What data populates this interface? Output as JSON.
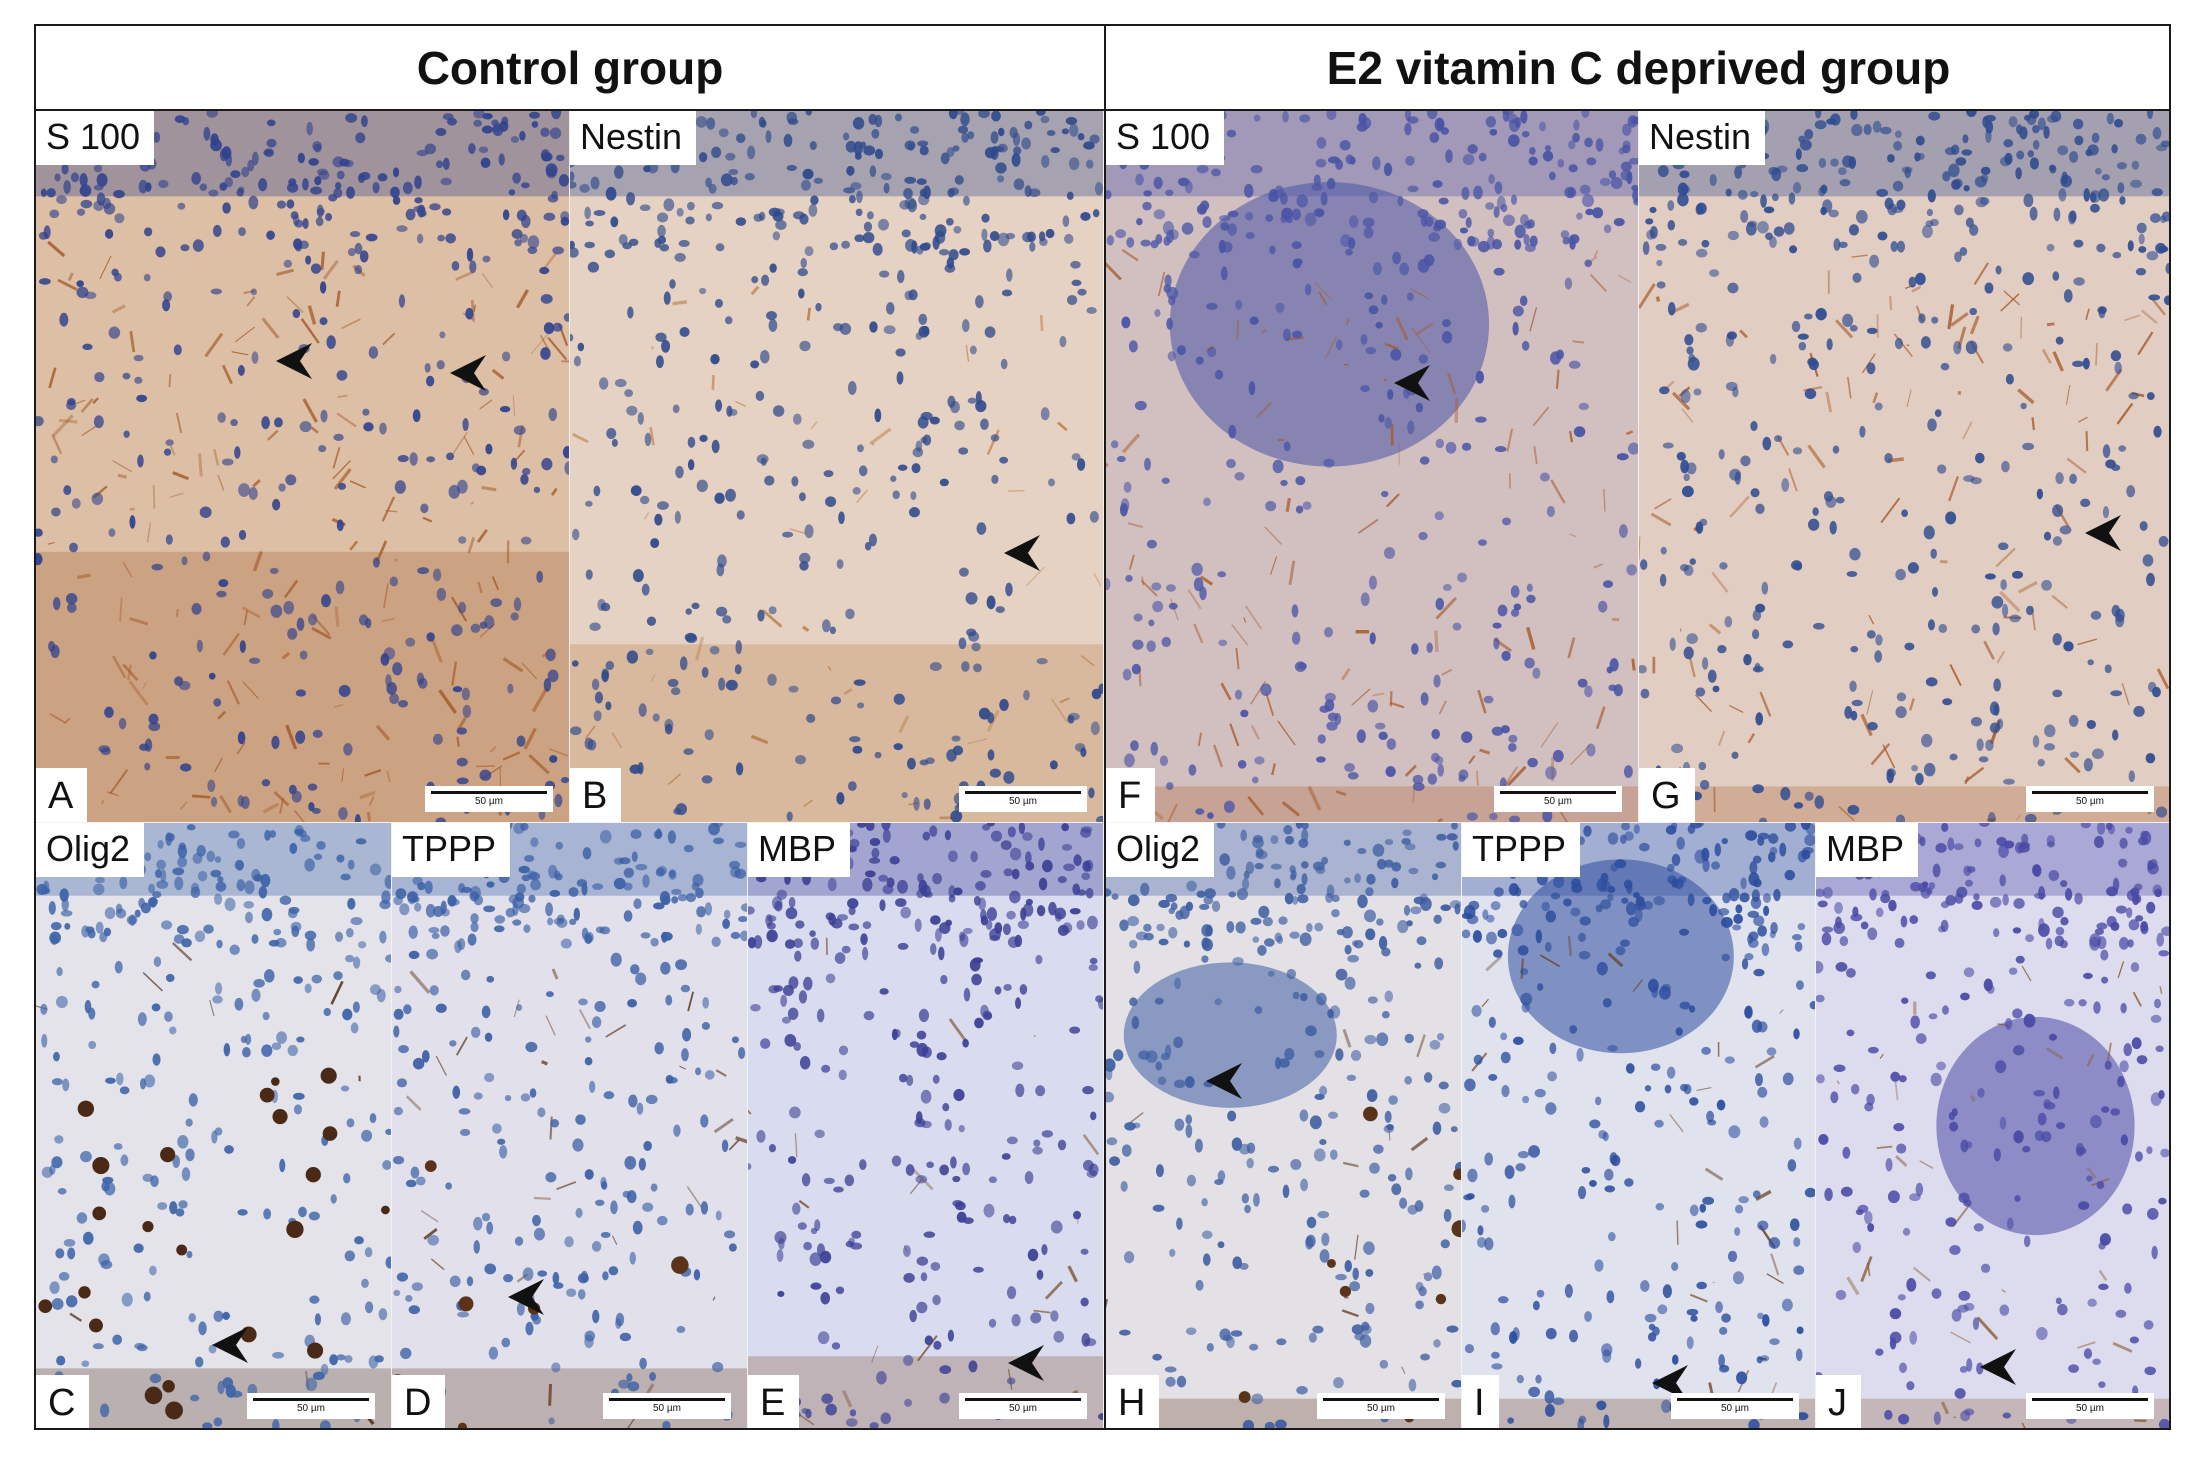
{
  "groups": {
    "control": "Control group",
    "e2": "E2 vitamin C deprived group"
  },
  "panels": [
    {
      "letter": "A",
      "stain": "S 100",
      "scale": "50 µm",
      "group": "control",
      "colors": {
        "bg": "#dcbfa4",
        "stain": "#a45a2a",
        "nuclei": "#31428e"
      }
    },
    {
      "letter": "B",
      "stain": "Nestin",
      "scale": "50 µm",
      "group": "control",
      "colors": {
        "bg": "#e6d2c3",
        "stain": "#b8793f",
        "nuclei": "#2f4a8c"
      }
    },
    {
      "letter": "C",
      "stain": "Olig2",
      "scale": "50 µm",
      "group": "control",
      "colors": {
        "bg": "#e4e3ea",
        "stain": "#4a2a17",
        "nuclei": "#3d63a8"
      }
    },
    {
      "letter": "D",
      "stain": "TPPP",
      "scale": "50 µm",
      "group": "control",
      "colors": {
        "bg": "#e2e1eb",
        "stain": "#5c3318",
        "nuclei": "#3c60a6"
      }
    },
    {
      "letter": "E",
      "stain": "MBP",
      "scale": "50 µm",
      "group": "control",
      "colors": {
        "bg": "#d9dcee",
        "stain": "#7c4d2a",
        "nuclei": "#3c3f95"
      }
    },
    {
      "letter": "F",
      "stain": "S 100",
      "scale": "50 µm",
      "group": "e2",
      "colors": {
        "bg": "#d2bfc0",
        "stain": "#a85a28",
        "nuclei": "#4954a6"
      }
    },
    {
      "letter": "G",
      "stain": "Nestin",
      "scale": "50 µm",
      "group": "e2",
      "colors": {
        "bg": "#e2cdc2",
        "stain": "#a55a29",
        "nuclei": "#304c90"
      }
    },
    {
      "letter": "H",
      "stain": "Olig2",
      "scale": "50 µm",
      "group": "e2",
      "colors": {
        "bg": "#e4e1e6",
        "stain": "#59341a",
        "nuclei": "#3e5ea2"
      }
    },
    {
      "letter": "I",
      "stain": "TPPP",
      "scale": "50 µm",
      "group": "e2",
      "colors": {
        "bg": "#e0e2ee",
        "stain": "#6b3c1c",
        "nuclei": "#2d4e9e"
      }
    },
    {
      "letter": "J",
      "stain": "MBP",
      "scale": "50 µm",
      "group": "e2",
      "colors": {
        "bg": "#dddcef",
        "stain": "#8a5a30",
        "nuclei": "#4a4aa6"
      }
    }
  ],
  "icons": {
    "arrow": "arrowhead-icon"
  }
}
